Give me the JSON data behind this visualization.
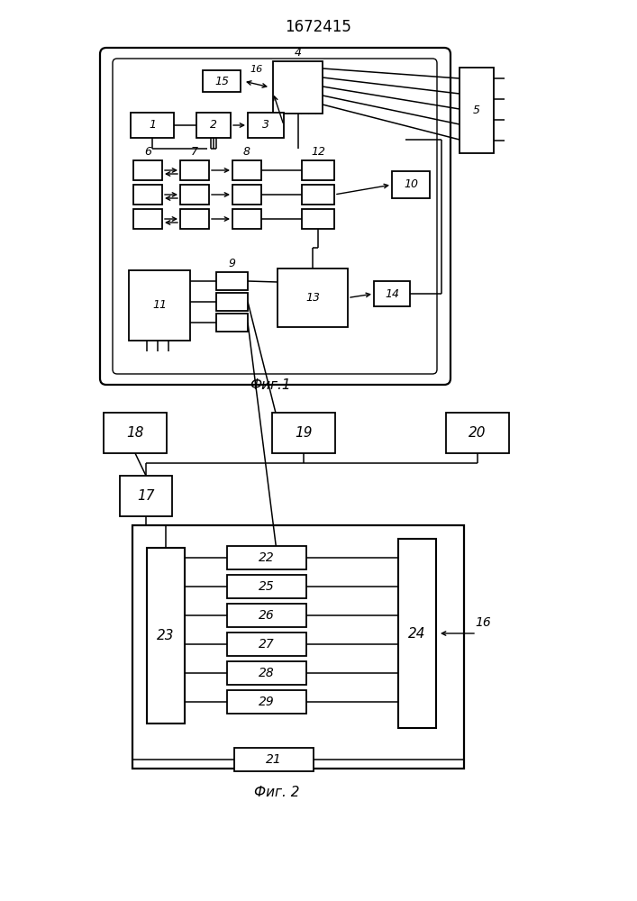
{
  "title": "1672415",
  "fig1_label": "Фиг.1",
  "fig2_label": "Фиг. 2",
  "bg_color": "#ffffff"
}
